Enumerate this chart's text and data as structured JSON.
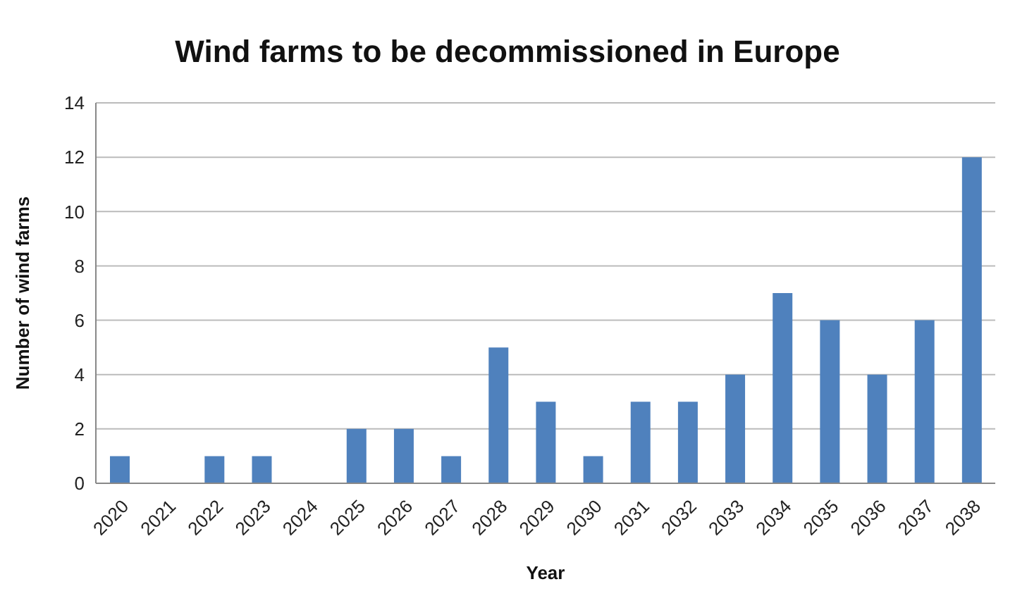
{
  "chart_data": {
    "type": "bar",
    "title": "Wind farms to be decommissioned in Europe",
    "xlabel": "Year",
    "ylabel": "Number of wind farms",
    "categories": [
      "2020",
      "2021",
      "2022",
      "2023",
      "2024",
      "2025",
      "2026",
      "2027",
      "2028",
      "2029",
      "2030",
      "2031",
      "2032",
      "2033",
      "2034",
      "2035",
      "2036",
      "2037",
      "2038"
    ],
    "values": [
      1,
      0,
      1,
      1,
      0,
      2,
      2,
      1,
      5,
      3,
      1,
      3,
      3,
      4,
      7,
      6,
      4,
      6,
      12
    ],
    "color": "#4f81bd",
    "ylim": [
      0,
      14
    ],
    "yticks": [
      0,
      2,
      4,
      6,
      8,
      10,
      12,
      14
    ],
    "grid": "y"
  }
}
